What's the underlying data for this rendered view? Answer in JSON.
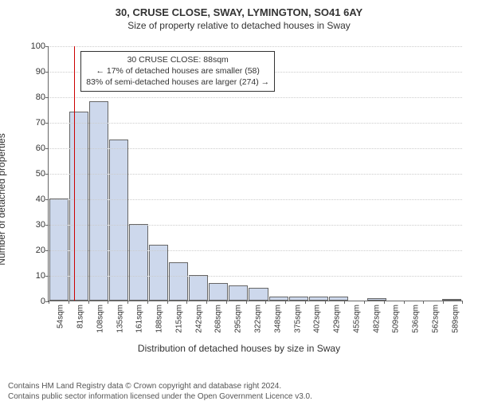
{
  "title_main": "30, CRUSE CLOSE, SWAY, LYMINGTON, SO41 6AY",
  "title_sub": "Size of property relative to detached houses in Sway",
  "y_label": "Number of detached properties",
  "x_label": "Distribution of detached houses by size in Sway",
  "chart": {
    "type": "histogram",
    "ylim": [
      0,
      100
    ],
    "ytick_step": 10,
    "background_color": "#ffffff",
    "grid_color": "#cccccc",
    "axis_color": "#666666",
    "bar_fill": "#cdd8ec",
    "bar_border": "#666666",
    "marker_color": "#cc0000",
    "categories": [
      "54sqm",
      "81sqm",
      "108sqm",
      "135sqm",
      "161sqm",
      "188sqm",
      "215sqm",
      "242sqm",
      "268sqm",
      "295sqm",
      "322sqm",
      "348sqm",
      "375sqm",
      "402sqm",
      "429sqm",
      "455sqm",
      "482sqm",
      "509sqm",
      "536sqm",
      "562sqm",
      "589sqm"
    ],
    "values": [
      40,
      74,
      78,
      63,
      30,
      22,
      15,
      10,
      7,
      6,
      5,
      1.5,
      1.5,
      1.5,
      1.5,
      0,
      1,
      0,
      0,
      0,
      0.5
    ],
    "marker_index": 1.3,
    "label_fontsize": 12,
    "tick_fontsize": 11
  },
  "annotation": {
    "line1": "30 CRUSE CLOSE: 88sqm",
    "line2": "← 17% of detached houses are smaller (58)",
    "line3": "83% of semi-detached houses are larger (274) →"
  },
  "footer": {
    "line1": "Contains HM Land Registry data © Crown copyright and database right 2024.",
    "line2": "Contains public sector information licensed under the Open Government Licence v3.0."
  }
}
